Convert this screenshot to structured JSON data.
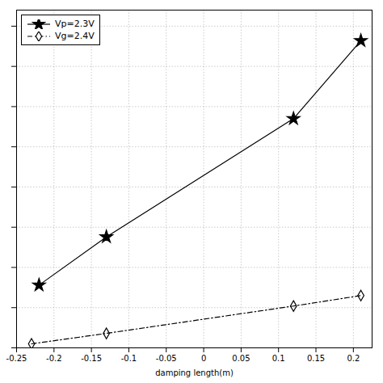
{
  "chart_data": {
    "type": "line",
    "xlabel": "damping length(m)",
    "series": [
      {
        "name": "Vp=2.3V",
        "color": "black",
        "marker": "star",
        "line_style": "solid",
        "x": [
          -0.22,
          -0.13,
          0.12,
          0.21
        ],
        "values": [
          0.78,
          1.38,
          2.85,
          3.82
        ]
      },
      {
        "name": "Vg=2.4V",
        "color": "black",
        "marker": "diamond",
        "line_style": "dashdot",
        "x": [
          -0.23,
          -0.13,
          0.12,
          0.21
        ],
        "values": [
          0.05,
          0.18,
          0.52,
          0.65
        ]
      }
    ],
    "xlim": [
      -0.25,
      0.225
    ],
    "ylim": [
      0,
      4.2
    ],
    "xticks": [
      -0.25,
      -0.2,
      -0.15,
      -0.1,
      -0.05,
      0,
      0.05,
      0.1,
      0.15,
      0.2
    ],
    "yticks": [
      0,
      0.5,
      1.0,
      1.5,
      2.0,
      2.5,
      3.0,
      3.5,
      4.0
    ],
    "grid": true,
    "legend": "upper left",
    "tick_labels": "x"
  }
}
